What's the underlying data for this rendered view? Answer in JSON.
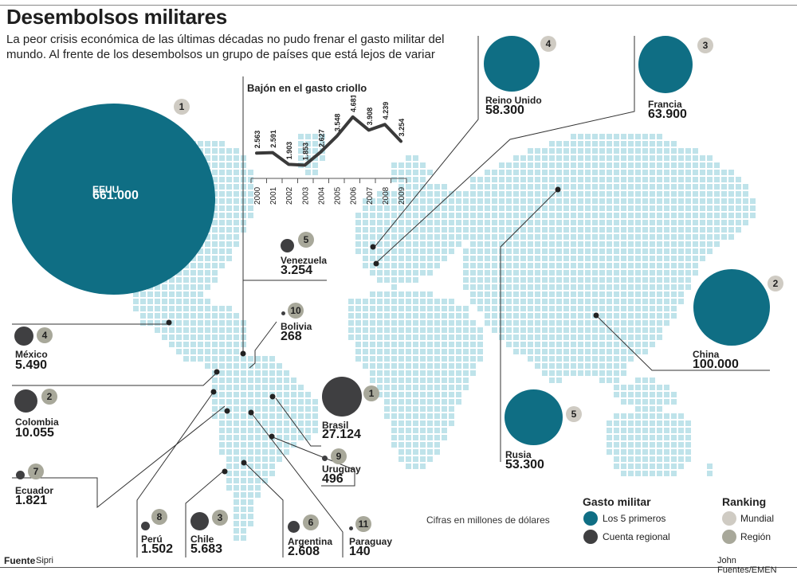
{
  "header": {
    "title": "Desembolsos militares",
    "subtitle": "La peor crisis económica de las últimas décadas no pudo frenar el gasto militar del mundo. Al frente de los desembolsos un grupo de países que está lejos de variar"
  },
  "world": [
    {
      "rank": "1",
      "name": "EEUU",
      "value": "661.000"
    },
    {
      "rank": "2",
      "name": "China",
      "value": "100.000"
    },
    {
      "rank": "3",
      "name": "Francia",
      "value": "63.900"
    },
    {
      "rank": "4",
      "name": "Reino Unido",
      "value": "58.300"
    },
    {
      "rank": "5",
      "name": "Rusia",
      "value": "53.300"
    }
  ],
  "region": [
    {
      "rank": "1",
      "name": "Brasil",
      "value": "27.124"
    },
    {
      "rank": "2",
      "name": "Colombia",
      "value": "10.055"
    },
    {
      "rank": "3",
      "name": "Chile",
      "value": "5.683"
    },
    {
      "rank": "4",
      "name": "México",
      "value": "5.490"
    },
    {
      "rank": "5",
      "name": "Venezuela",
      "value": "3.254"
    },
    {
      "rank": "6",
      "name": "Argentina",
      "value": "2.608"
    },
    {
      "rank": "7",
      "name": "Ecuador",
      "value": "1.821"
    },
    {
      "rank": "8",
      "name": "Perú",
      "value": "1.502"
    },
    {
      "rank": "9",
      "name": "Uruguay",
      "value": "496"
    },
    {
      "rank": "10",
      "name": "Bolivia",
      "value": "268"
    },
    {
      "rank": "11",
      "name": "Paraguay",
      "value": "140"
    }
  ],
  "chart_data": {
    "type": "line",
    "title": "Bajón en el gasto criollo",
    "x": [
      "2000",
      "2001",
      "2002",
      "2003",
      "2004",
      "2005",
      "2006",
      "2007",
      "2008",
      "2009"
    ],
    "values": [
      2563,
      2591,
      1903,
      1853,
      2627,
      3548,
      4681,
      3908,
      4239,
      3254
    ],
    "value_labels": [
      "2.563",
      "2.591",
      "1.903",
      "1.853",
      "2.627",
      "3.548",
      "4.681",
      "3.908",
      "4.239",
      "3.254"
    ]
  },
  "legend": {
    "gasto_title": "Gasto militar",
    "gasto_items": [
      "Los 5 primeros",
      "Cuenta regional"
    ],
    "ranking_title": "Ranking",
    "ranking_items": [
      "Mundial",
      "Región"
    ],
    "note": "Cifras en millones de dólares"
  },
  "footer": {
    "source_label": "Fuente",
    "source_value": "Sipri",
    "credit": "John Fuentes/EMEN"
  },
  "colors": {
    "map_dot": "#bfe3ea",
    "world_bubble": "#0f6e84",
    "region_bubble": "#3f3f41",
    "rank_world": "#cfcbc3",
    "rank_region": "#a8a89a"
  }
}
